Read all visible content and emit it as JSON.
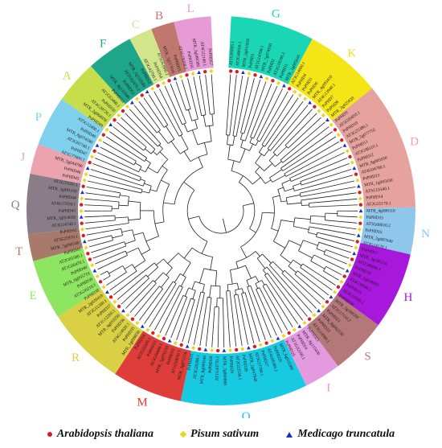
{
  "figure": {
    "groups": [
      {
        "letter": "G",
        "color": "#1bd6b4"
      },
      {
        "letter": "K",
        "color": "#f5e416"
      },
      {
        "letter": "D",
        "color": "#e6a29c"
      },
      {
        "letter": "N",
        "color": "#8ec6ec"
      },
      {
        "letter": "H",
        "color": "#a818dc"
      },
      {
        "letter": "S",
        "color": "#b47878"
      },
      {
        "letter": "I",
        "color": "#e39adf"
      },
      {
        "letter": "O",
        "color": "#18c9e2"
      },
      {
        "letter": "M",
        "color": "#de3d3a"
      },
      {
        "letter": "R",
        "color": "#d9d043"
      },
      {
        "letter": "E",
        "color": "#8ee562"
      },
      {
        "letter": "T",
        "color": "#a87a6c"
      },
      {
        "letter": "Q",
        "color": "#8a7d87"
      },
      {
        "letter": "J",
        "color": "#eba3ae"
      },
      {
        "letter": "P",
        "color": "#7fd0ed"
      },
      {
        "letter": "A",
        "color": "#c6de4c"
      },
      {
        "letter": "F",
        "color": "#1ea68a"
      },
      {
        "letter": "C",
        "color": "#d3e58a"
      },
      {
        "letter": "B",
        "color": "#c0786e"
      },
      {
        "letter": "L",
        "color": "#e79bd6"
      }
    ],
    "leaves": [
      "AT1G05805.1",
      "AT2G40050.1",
      "MTR_2g011810",
      "PsPHD1",
      "AT1G14700.1",
      "MTR_7g074930",
      "PsPHD2",
      "AT2G18180.2",
      "PsPHD3",
      "MTR_1g085645",
      "AT3G14000.1",
      "PsPHD4",
      "PsPHD5",
      "PsPHD6",
      "MTR_4g093410",
      "AT4G13940.1",
      "PsPHD7",
      "PsPHD8",
      "MTR_3g025820",
      "PsPHD9",
      "AT5G05850.1",
      "PsPHD10",
      "AT3G25380.1",
      "MTR_5g077755",
      "PsPHD11",
      "AT2G08110.1",
      "PsPHD12",
      "MTR_8g005050",
      "AT4G04780.1",
      "PsPHD13",
      "MTR_1g005030",
      "AT5G10140.1",
      "PsPHD14",
      "AT2G25170.1",
      "MTR_4g008110",
      "PsPHD15",
      "AT5G08010.2",
      "PsPHD16",
      "MTR_2g087640",
      "AT3G14120.1",
      "PsPHD17",
      "MTR_3g106210",
      "AT5G48890.1",
      "PsPHD18",
      "MTR_2g038000",
      "AT4G39040.1",
      "PsPHD19",
      "AT3G19260.1",
      "PsPHD20",
      "MTR_5g100300",
      "AT2G17110.2",
      "PsPHD21",
      "MTR_8g082550",
      "PsPHD22",
      "AT3G14980.1",
      "PsPHD23",
      "MTR_4g115430",
      "PsPHD24",
      "AT1G32100.1",
      "PsPHD25",
      "MTR_6g010380",
      "PsPHD26",
      "AT4G09380.1",
      "PsPHD27",
      "AT5G57780.1",
      "MTR_1g047940",
      "PsPHD28",
      "AT2G22530.1",
      "PsPHD29",
      "MTR_7g066800",
      "AT1G43770.2",
      "PsPHD30",
      "MTR_8g099540",
      "AT3G20280.1",
      "PsPHD31",
      "MTR_3g072150",
      "AT1G50850.1",
      "PsPHD32",
      "MTR_5g076150",
      "AT5G04400.1",
      "PsPHD33",
      "AT2G35500.1",
      "PsPHD34",
      "MTR_1g099850",
      "PsPHD35",
      "AT4G14920.1",
      "PsPHD36",
      "MTR_4g053250",
      "AT1G12260.1",
      "PsPHD37",
      "AT3G11200.1",
      "MTR_2g020410",
      "PsPHD38",
      "AT5G26210.1",
      "PsPHD39",
      "MTR_6g055710",
      "PsPHD40",
      "AT1G66470.1",
      "AT2G05580.1",
      "PsPHD41",
      "MTR_7g090540",
      "AT5G25970.1",
      "PsPHD42",
      "AT3G14740.1",
      "MTR_1g014020",
      "PsPHD43",
      "AT4G17810.1",
      "PsPHD44",
      "MTR_3g091100",
      "AT2G31650.1",
      "PsPHD45",
      "PsPHD46",
      "MTR_5g044780",
      "AT1G77800.1",
      "PsPHD47",
      "AT3G61740.1",
      "MTR_8g074180",
      "PsPHD48",
      "AT5G12400.1",
      "PsPHD49",
      "MTR_2g064930",
      "AT4G20720.1",
      "PsPHD50",
      "AT1G63490.1",
      "PsPHD51",
      "MTR_4g131940",
      "PsPHD52",
      "AT2G02470.1",
      "MTR_1g110580",
      "PsPHD53",
      "AT3G42790.1",
      "PsPHD54",
      "AT5G63900.1",
      "MTR_7g117010",
      "PsPHD55",
      "AT1G79350.1",
      "PsPHD56",
      "MTR_3g088380",
      "AT4G22140.1",
      "PsPHD57"
    ],
    "leaf_species": "ccc"
  },
  "legend": {
    "items": [
      {
        "label": "Arabidopsis thaliana",
        "marker": "circle",
        "color": "#d81e1e"
      },
      {
        "label": "Pisum sativum",
        "marker": "diamond",
        "color": "#f2d21a"
      },
      {
        "label": "Medicago truncatula",
        "marker": "triangle",
        "color": "#1e2fb8"
      }
    ]
  }
}
